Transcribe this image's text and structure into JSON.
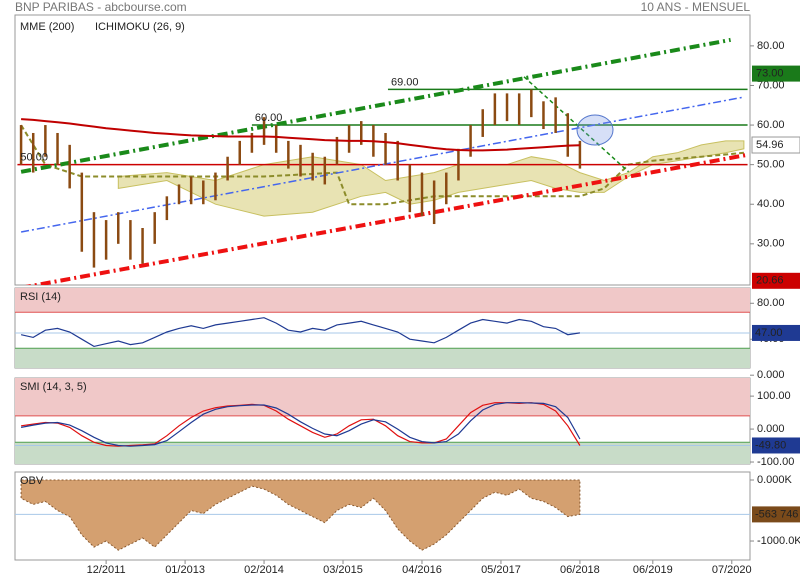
{
  "header": {
    "title": "BNP PARIBAS - abcbourse.com",
    "subtitle": "10 ANS - MENSUEL"
  },
  "x_axis": {
    "xlim": [
      -0.5,
      60
    ],
    "xticks": [
      {
        "value": 7,
        "label": "12/2011"
      },
      {
        "value": 13.5,
        "label": "01/2013"
      },
      {
        "value": 20,
        "label": "02/2014"
      },
      {
        "value": 26.5,
        "label": "03/2015"
      },
      {
        "value": 33,
        "label": "04/2016"
      },
      {
        "value": 39.5,
        "label": "05/2017"
      },
      {
        "value": 46,
        "label": "06/2018"
      },
      {
        "value": 52,
        "label": "06/2019"
      },
      {
        "value": 58.5,
        "label": "07/2020"
      }
    ]
  },
  "chart_data": [
    {
      "type": "ohlc",
      "color": "#8b4a12",
      "ylim": [
        19.6,
        87.8
      ],
      "yticks": [
        {
          "value": 80,
          "label": "80.00"
        },
        {
          "value": 70,
          "label": "70.00"
        },
        {
          "value": 60,
          "label": "60.00"
        },
        {
          "value": 50,
          "label": "50.00"
        },
        {
          "value": 40,
          "label": "40.00"
        },
        {
          "value": 30,
          "label": "30.00"
        }
      ],
      "high": [
        60,
        58,
        60,
        58,
        55,
        48,
        38,
        36,
        38,
        36,
        34,
        38,
        42,
        45,
        47,
        46,
        48,
        52,
        56,
        58,
        62,
        60,
        56,
        55,
        53,
        52,
        57,
        60,
        61,
        60,
        58,
        56,
        50,
        48,
        46,
        48,
        54,
        60,
        64,
        68,
        68,
        68,
        69,
        66,
        67,
        63,
        56
      ],
      "low": [
        50,
        48,
        52,
        50,
        44,
        28,
        24,
        26,
        30,
        26,
        25,
        30,
        36,
        40,
        40,
        40,
        41,
        46,
        50,
        53,
        55,
        53,
        49,
        47,
        46,
        45,
        50,
        53,
        55,
        52,
        50,
        46,
        38,
        37,
        35,
        40,
        46,
        52,
        57,
        60,
        61,
        60,
        62,
        59,
        58,
        52,
        49
      ],
      "series": [
        {
          "name": "MME (200)",
          "color": "#c00000",
          "values": [
            61.5,
            61.3,
            61.0,
            60.7,
            60.4,
            60.0,
            59.6,
            59.2,
            58.9,
            58.6,
            58.3,
            58.0,
            57.8,
            57.6,
            57.4,
            57.3,
            57.2,
            57.1,
            57.1,
            57.1,
            57.1,
            57.0,
            56.8,
            56.6,
            56.4,
            56.2,
            56.1,
            56.0,
            56.0,
            55.9,
            55.7,
            55.4,
            55.0,
            54.6,
            54.2,
            53.9,
            53.7,
            53.6,
            53.6,
            53.7,
            53.8,
            54.0,
            54.2,
            54.4,
            54.6,
            54.8,
            54.9
          ]
        },
        {
          "name": "ICHIMOKU (26, 9)",
          "color": "#2233cc",
          "cloud_color": "#d8d080",
          "line_color": "#8c8c2a",
          "x": [
            8,
            12,
            16,
            20,
            24,
            28,
            30,
            32,
            34,
            36,
            38,
            40,
            42,
            44,
            46,
            48,
            50,
            52,
            54,
            56,
            58,
            59.5
          ],
          "upper": [
            47,
            48,
            46,
            50,
            52,
            50,
            46,
            47,
            48,
            50,
            50,
            50,
            52,
            51,
            48,
            46,
            48,
            52,
            53,
            55,
            56,
            56
          ],
          "lower": [
            44,
            46,
            40,
            37,
            38,
            42,
            43,
            40,
            41,
            43,
            44,
            45,
            46,
            44,
            43,
            43,
            47,
            50,
            51,
            52,
            53,
            54
          ],
          "line_x": [
            0,
            2,
            5,
            6,
            20,
            26,
            27,
            30,
            34,
            38,
            44,
            46,
            48,
            50,
            52,
            56,
            59.5
          ],
          "line": [
            60,
            50,
            47,
            47,
            47,
            48,
            40,
            40,
            42,
            42,
            42,
            42,
            44,
            50,
            51,
            52,
            53
          ]
        }
      ],
      "trendlines": [
        {
          "x": [
            0,
            58.4
          ],
          "y": [
            48.2,
            81.5
          ],
          "color": "#1a8a1a",
          "dash": "10 4 2 4",
          "width": 4
        },
        {
          "x": [
            0,
            59.8
          ],
          "y": [
            18.9,
            52.5
          ],
          "color": "#ee1111",
          "dash": "10 4 2 4",
          "width": 4
        },
        {
          "x": [
            0,
            59.4
          ],
          "y": [
            33,
            67
          ],
          "color": "#4466ee",
          "dash": "8 3 2 3",
          "width": 1.5
        },
        {
          "x": [
            41.4,
            50
          ],
          "y": [
            72.2,
            48.2
          ],
          "color": "#1a8a1a",
          "dash": "4 3",
          "width": 1.5
        }
      ],
      "levels": [
        {
          "value": 69,
          "label": "69.00",
          "x": [
            30.2,
            59.8
          ],
          "color": "#1a7a1a"
        },
        {
          "value": 60,
          "label": "60.00",
          "x": [
            19,
            59.8
          ],
          "color": "#1a7a1a"
        },
        {
          "value": 50,
          "label": "50.00",
          "x": [
            -0.3,
            59.8
          ],
          "color": "#cc0000"
        }
      ],
      "price_tags": [
        {
          "value": 73,
          "label": "73.00",
          "color": "#1a7a1a"
        },
        {
          "value": 54.96,
          "label": "54.96",
          "color": "#ffffff"
        },
        {
          "value": 20.66,
          "label": "20.66",
          "color": "#cc0000"
        }
      ]
    },
    {
      "type": "line",
      "title": "RSI (14)",
      "ylim": [
        8,
        97
      ],
      "yticks": [
        {
          "value": 80,
          "label": "80.00"
        },
        {
          "value": 40,
          "label": "40.00"
        },
        {
          "value": 0,
          "label": "0.000"
        }
      ],
      "overbought": 70,
      "oversold": 30,
      "series": [
        {
          "color": "#1f3a93",
          "values": [
            45,
            42,
            50,
            52,
            48,
            40,
            32,
            35,
            38,
            34,
            36,
            42,
            48,
            52,
            55,
            52,
            56,
            58,
            60,
            62,
            64,
            58,
            50,
            48,
            52,
            50,
            56,
            58,
            60,
            56,
            52,
            48,
            40,
            38,
            36,
            42,
            50,
            58,
            62,
            60,
            58,
            62,
            60,
            54,
            52,
            45,
            47
          ]
        }
      ],
      "value_tag": {
        "value": 47,
        "label": "47.00",
        "color": "#1f3a93"
      }
    },
    {
      "type": "line",
      "title": "SMI (14, 3, 5)",
      "ylim": [
        -106,
        155
      ],
      "yticks": [
        {
          "value": 100,
          "label": "100.00"
        },
        {
          "value": 0,
          "label": "0.000"
        },
        {
          "value": -100,
          "label": "-100.00"
        }
      ],
      "overbought": 40,
      "oversold": -40,
      "series": [
        {
          "color": "#e01010",
          "values": [
            10,
            15,
            20,
            18,
            5,
            -20,
            -40,
            -50,
            -52,
            -50,
            -48,
            -45,
            -20,
            10,
            35,
            55,
            65,
            70,
            72,
            75,
            72,
            55,
            30,
            10,
            -10,
            -25,
            -15,
            10,
            28,
            30,
            10,
            -20,
            -38,
            -42,
            -42,
            -30,
            10,
            50,
            72,
            80,
            80,
            78,
            80,
            75,
            55,
            10,
            -49.8
          ]
        },
        {
          "color": "#1f3a93",
          "values": [
            5,
            12,
            18,
            20,
            12,
            -5,
            -25,
            -42,
            -50,
            -52,
            -50,
            -47,
            -35,
            -8,
            20,
            45,
            60,
            68,
            71,
            73,
            73,
            64,
            45,
            22,
            2,
            -15,
            -20,
            -5,
            15,
            28,
            22,
            0,
            -25,
            -38,
            -42,
            -38,
            -15,
            25,
            58,
            75,
            80,
            80,
            79,
            78,
            68,
            35,
            -30
          ]
        }
      ],
      "value_tag": {
        "value": -49.8,
        "label": "-49.80",
        "color": "#1f3a93"
      }
    },
    {
      "type": "area",
      "title": "OBV",
      "ylim": [
        -1311000,
        131000
      ],
      "yticks": [
        {
          "value": 0,
          "label": "0.000K"
        },
        {
          "value": -1000000,
          "label": "-1000.0K"
        }
      ],
      "series": [
        {
          "color": "#d4a070",
          "values": [
            -300000,
            -400000,
            -350000,
            -500000,
            -600000,
            -900000,
            -1100000,
            -1000000,
            -1150000,
            -1050000,
            -950000,
            -1100000,
            -900000,
            -700000,
            -500000,
            -550000,
            -400000,
            -300000,
            -200000,
            -100000,
            -150000,
            -250000,
            -400000,
            -500000,
            -600000,
            -700000,
            -500000,
            -400000,
            -450000,
            -300000,
            -500000,
            -800000,
            -1000000,
            -1150000,
            -1050000,
            -900000,
            -700000,
            -500000,
            -300000,
            -200000,
            -250000,
            -150000,
            -300000,
            -350000,
            -450000,
            -600000,
            -563746
          ]
        }
      ],
      "value_tag": {
        "value": -563746,
        "label": "-563 746",
        "color": "#7a4a1a"
      }
    }
  ]
}
